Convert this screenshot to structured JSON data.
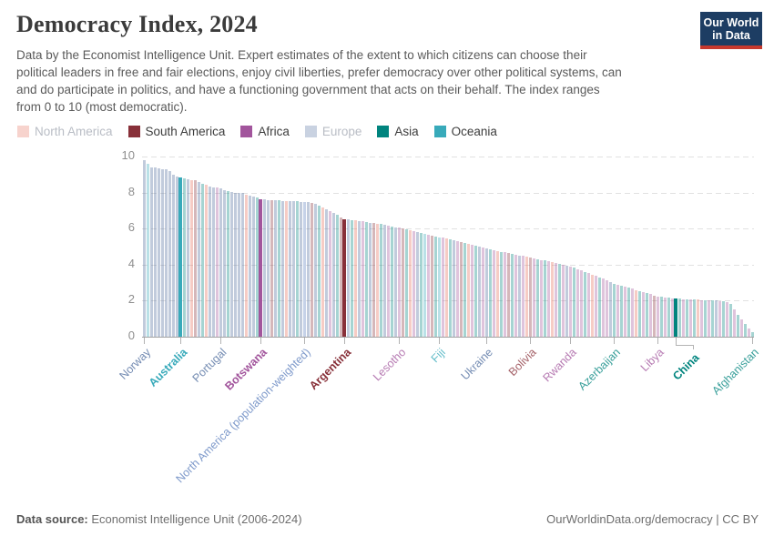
{
  "header": {
    "title": "Democracy Index, 2024",
    "subtitle_lines": [
      "Data by the Economist Intelligence Unit. Expert estimates of the extent to which citizens can choose their",
      "political leaders in free and fair elections, enjoy civil liberties, prefer democracy over other political systems, can",
      "and do participate in politics, and have a functioning government that acts on their behalf. The index ranges",
      "from 0 to 10 (most democratic)."
    ],
    "logo": {
      "line1": "Our World",
      "line2": "in Data",
      "navy": "#1d3d63",
      "red": "#c7392e"
    }
  },
  "legend": {
    "items": [
      {
        "label": "North America",
        "color": "#E56E5A",
        "active": false
      },
      {
        "label": "South America",
        "color": "#883039",
        "active": true
      },
      {
        "label": "Africa",
        "color": "#A2559C",
        "active": true
      },
      {
        "label": "Europe",
        "color": "#4C6A9C",
        "active": false
      },
      {
        "label": "Asia",
        "color": "#00847E",
        "active": true
      },
      {
        "label": "Oceania",
        "color": "#38AABA",
        "active": true
      }
    ],
    "active_text_color": "#3d3d3d",
    "inactive_text_color": "#b9bdc5"
  },
  "chart_data": {
    "type": "bar",
    "title": "Democracy Index, 2024",
    "ylabel": "",
    "xlabel": "",
    "ylim": [
      0,
      10
    ],
    "yticks": [
      0,
      2,
      4,
      6,
      8,
      10
    ],
    "grid": "horizontal-dashed",
    "sort": "descending",
    "continent_colors": {
      "NA": "#E56E5A",
      "SA": "#883039",
      "AF": "#A2559C",
      "EU": "#4C6A9C",
      "AS": "#00847E",
      "OC": "#38AABA",
      "PW": "#5B7EBC"
    },
    "faded_bar_opacity": 0.35,
    "highlighted": [
      "Australia",
      "Botswana",
      "Argentina",
      "China"
    ],
    "elbow_labels": {
      "China": 19
    },
    "labeled_countries": [
      {
        "name": "Norway",
        "value": 9.81
      },
      {
        "name": "Australia",
        "value": 8.85
      },
      {
        "name": "Portugal",
        "value": 8.22
      },
      {
        "name": "Botswana",
        "value": 7.64
      },
      {
        "name": "North America (population-weighted)",
        "value": 7.49
      },
      {
        "name": "Argentina",
        "value": 6.52
      },
      {
        "name": "Lesotho",
        "value": 6.04
      },
      {
        "name": "Fiji",
        "value": 5.53
      },
      {
        "name": "Ukraine",
        "value": 4.9
      },
      {
        "name": "Bolivia",
        "value": 4.41
      },
      {
        "name": "Rwanda",
        "value": 3.9
      },
      {
        "name": "Azerbaijan",
        "value": 2.94
      },
      {
        "name": "Libya",
        "value": 2.23
      },
      {
        "name": "China",
        "value": 2.11
      },
      {
        "name": "Afghanistan",
        "value": 0.25
      }
    ],
    "bars": [
      [
        9.81,
        "EU",
        "Norway"
      ],
      [
        9.61,
        "OC"
      ],
      [
        9.4,
        "EU"
      ],
      [
        9.38,
        "EU"
      ],
      [
        9.32,
        "EU"
      ],
      [
        9.3,
        "EU"
      ],
      [
        9.28,
        "EU"
      ],
      [
        9.19,
        "EU"
      ],
      [
        9.0,
        "EU"
      ],
      [
        8.88,
        "EU"
      ],
      [
        8.85,
        "OC",
        "Australia"
      ],
      [
        8.78,
        "AS"
      ],
      [
        8.73,
        "EU"
      ],
      [
        8.69,
        "NA"
      ],
      [
        8.67,
        "SA"
      ],
      [
        8.58,
        "EU"
      ],
      [
        8.48,
        "AS"
      ],
      [
        8.42,
        "NA"
      ],
      [
        8.34,
        "EU"
      ],
      [
        8.29,
        "EU"
      ],
      [
        8.28,
        "AF"
      ],
      [
        8.22,
        "EU",
        "Portugal"
      ],
      [
        8.14,
        "EU"
      ],
      [
        8.08,
        "AS"
      ],
      [
        8.01,
        "EU"
      ],
      [
        7.99,
        "EU"
      ],
      [
        7.97,
        "EU"
      ],
      [
        7.96,
        "EU"
      ],
      [
        7.9,
        "NA"
      ],
      [
        7.85,
        "EU"
      ],
      [
        7.8,
        "EU"
      ],
      [
        7.75,
        "AS"
      ],
      [
        7.64,
        "AF",
        "Botswana"
      ],
      [
        7.62,
        "EU"
      ],
      [
        7.6,
        "EU"
      ],
      [
        7.59,
        "SA"
      ],
      [
        7.58,
        "EU"
      ],
      [
        7.56,
        "AS"
      ],
      [
        7.55,
        "EU"
      ],
      [
        7.54,
        "NA"
      ],
      [
        7.53,
        "EU"
      ],
      [
        7.52,
        "EU"
      ],
      [
        7.51,
        "AS"
      ],
      [
        7.5,
        "EU"
      ],
      [
        7.49,
        "PW",
        "North America (population-weighted)"
      ],
      [
        7.45,
        "EU"
      ],
      [
        7.4,
        "SA"
      ],
      [
        7.35,
        "EU"
      ],
      [
        7.25,
        "AS"
      ],
      [
        7.15,
        "NA"
      ],
      [
        7.05,
        "EU"
      ],
      [
        6.95,
        "AF"
      ],
      [
        6.85,
        "EU"
      ],
      [
        6.75,
        "AS"
      ],
      [
        6.62,
        "SA"
      ],
      [
        6.52,
        "SA",
        "Argentina"
      ],
      [
        6.5,
        "EU"
      ],
      [
        6.48,
        "AS"
      ],
      [
        6.45,
        "NA"
      ],
      [
        6.42,
        "EU"
      ],
      [
        6.4,
        "AF"
      ],
      [
        6.36,
        "AS"
      ],
      [
        6.32,
        "EU"
      ],
      [
        6.3,
        "SA"
      ],
      [
        6.28,
        "NA"
      ],
      [
        6.25,
        "AS"
      ],
      [
        6.22,
        "EU"
      ],
      [
        6.18,
        "AF"
      ],
      [
        6.12,
        "AS"
      ],
      [
        6.08,
        "EU"
      ],
      [
        6.04,
        "AF",
        "Lesotho"
      ],
      [
        6.0,
        "SA"
      ],
      [
        5.95,
        "AS"
      ],
      [
        5.9,
        "NA"
      ],
      [
        5.85,
        "AF"
      ],
      [
        5.8,
        "EU"
      ],
      [
        5.75,
        "AS"
      ],
      [
        5.7,
        "OC"
      ],
      [
        5.65,
        "AF"
      ],
      [
        5.6,
        "SA"
      ],
      [
        5.56,
        "AS"
      ],
      [
        5.53,
        "OC",
        "Fiji"
      ],
      [
        5.5,
        "AF"
      ],
      [
        5.45,
        "NA"
      ],
      [
        5.4,
        "AS"
      ],
      [
        5.35,
        "EU"
      ],
      [
        5.3,
        "AF"
      ],
      [
        5.25,
        "SA"
      ],
      [
        5.2,
        "AS"
      ],
      [
        5.15,
        "NA"
      ],
      [
        5.1,
        "AF"
      ],
      [
        5.05,
        "AS"
      ],
      [
        5.0,
        "EU"
      ],
      [
        4.95,
        "AF"
      ],
      [
        4.9,
        "EU",
        "Ukraine"
      ],
      [
        4.85,
        "AS"
      ],
      [
        4.8,
        "AF"
      ],
      [
        4.76,
        "NA"
      ],
      [
        4.72,
        "AS"
      ],
      [
        4.68,
        "AF"
      ],
      [
        4.64,
        "SA"
      ],
      [
        4.6,
        "AS"
      ],
      [
        4.56,
        "AF"
      ],
      [
        4.52,
        "EU"
      ],
      [
        4.48,
        "AF"
      ],
      [
        4.44,
        "NA"
      ],
      [
        4.41,
        "SA",
        "Bolivia"
      ],
      [
        4.36,
        "AF"
      ],
      [
        4.3,
        "AS"
      ],
      [
        4.26,
        "AF"
      ],
      [
        4.22,
        "AS"
      ],
      [
        4.18,
        "AF"
      ],
      [
        4.12,
        "NA"
      ],
      [
        4.08,
        "AF"
      ],
      [
        4.04,
        "AS"
      ],
      [
        4.0,
        "AF"
      ],
      [
        3.95,
        "EU"
      ],
      [
        3.9,
        "AF",
        "Rwanda"
      ],
      [
        3.84,
        "AS"
      ],
      [
        3.76,
        "AF"
      ],
      [
        3.68,
        "AF"
      ],
      [
        3.6,
        "AS"
      ],
      [
        3.52,
        "AF"
      ],
      [
        3.45,
        "NA"
      ],
      [
        3.38,
        "AF"
      ],
      [
        3.3,
        "AS"
      ],
      [
        3.22,
        "AF"
      ],
      [
        3.14,
        "AF"
      ],
      [
        3.04,
        "EU"
      ],
      [
        2.94,
        "AS",
        "Azerbaijan"
      ],
      [
        2.9,
        "AF"
      ],
      [
        2.85,
        "AS"
      ],
      [
        2.8,
        "AF"
      ],
      [
        2.74,
        "AS"
      ],
      [
        2.68,
        "AF"
      ],
      [
        2.6,
        "NA"
      ],
      [
        2.54,
        "AS"
      ],
      [
        2.48,
        "AF"
      ],
      [
        2.42,
        "AS"
      ],
      [
        2.35,
        "AF"
      ],
      [
        2.28,
        "SA"
      ],
      [
        2.23,
        "AF",
        "Libya"
      ],
      [
        2.2,
        "AS"
      ],
      [
        2.18,
        "AF"
      ],
      [
        2.16,
        "AS"
      ],
      [
        2.13,
        "AF"
      ],
      [
        2.11,
        "AS",
        "China"
      ],
      [
        2.1,
        "AS"
      ],
      [
        2.09,
        "AF"
      ],
      [
        2.08,
        "AS"
      ],
      [
        2.07,
        "AF"
      ],
      [
        2.06,
        "AS"
      ],
      [
        2.05,
        "NA"
      ],
      [
        2.04,
        "AF"
      ],
      [
        2.03,
        "AS"
      ],
      [
        2.02,
        "AF"
      ],
      [
        2.01,
        "AS"
      ],
      [
        2.0,
        "EU"
      ],
      [
        1.99,
        "AF"
      ],
      [
        1.97,
        "AS"
      ],
      [
        1.93,
        "AF"
      ],
      [
        1.8,
        "AS"
      ],
      [
        1.5,
        "AF"
      ],
      [
        1.2,
        "AS"
      ],
      [
        0.95,
        "AF"
      ],
      [
        0.7,
        "AS"
      ],
      [
        0.45,
        "AF"
      ],
      [
        0.25,
        "AS",
        "Afghanistan"
      ]
    ]
  },
  "footer": {
    "source_label": "Data source:",
    "source_text": " Economist Intelligence Unit (2006-2024)",
    "right_text": "OurWorldinData.org/democracy | CC BY"
  }
}
